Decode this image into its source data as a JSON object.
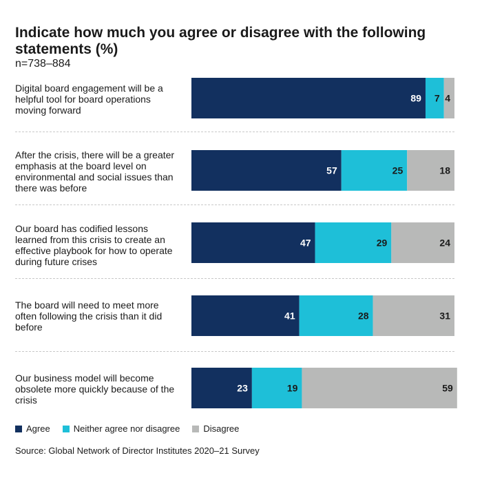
{
  "chart_data": {
    "type": "bar",
    "orientation": "horizontal",
    "stacked": true,
    "title": "Indicate how much you agree or disagree with the following statements (%)",
    "subtitle": "n=738–884",
    "categories": [
      "Digital board engagement will be a helpful tool for board operations moving forward",
      "After the crisis, there will be a greater emphasis at the board level on environmental and social issues than there was before",
      "Our board has codified lessons learned from this crisis to create an effective playbook for how to operate during future crises",
      "The board will need to meet more often following the crisis than it did before",
      "Our business model will become obsolete more quickly because of the crisis"
    ],
    "series": [
      {
        "name": "Agree",
        "values": [
          89,
          57,
          47,
          41,
          23
        ],
        "color": "#12305f"
      },
      {
        "name": "Neither agree nor disagree",
        "values": [
          7,
          25,
          29,
          28,
          19
        ],
        "color": "#1ebfd8"
      },
      {
        "name": "Disagree",
        "values": [
          4,
          18,
          24,
          31,
          59
        ],
        "color": "#b8b9b8"
      }
    ],
    "xlim": [
      0,
      100
    ],
    "legend_position": "bottom-left",
    "grid": false,
    "source": "Source: Global Network of Director Institutes 2020–21 Survey"
  }
}
